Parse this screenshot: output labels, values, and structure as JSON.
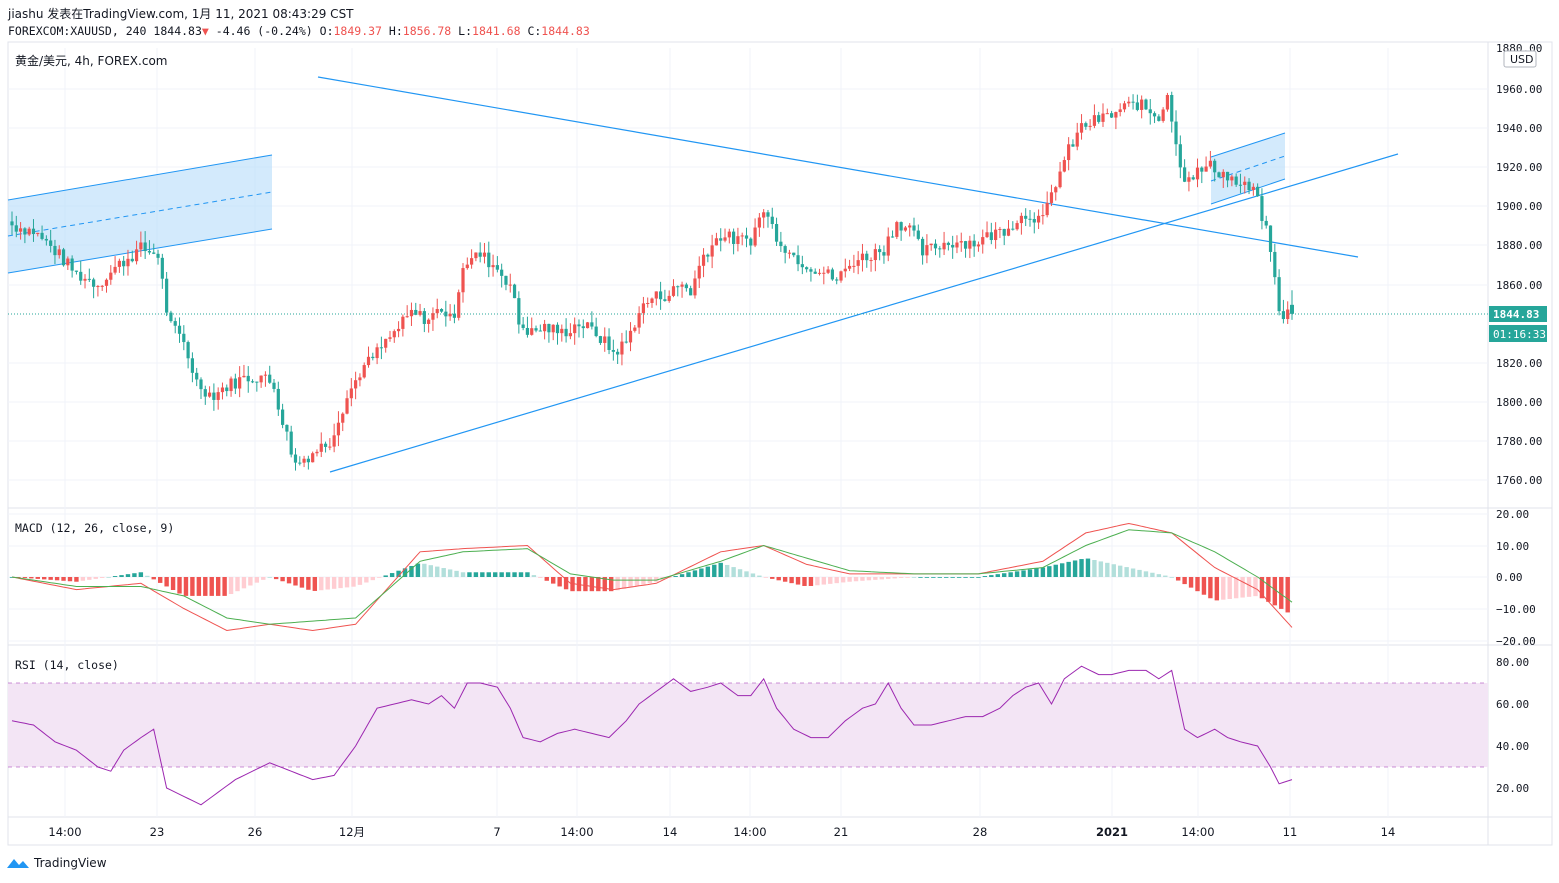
{
  "header": {
    "line1": "jiashu 发表在TradingView.com, 1月 11, 2021 08:43:29 CST",
    "symbol": "FOREXCOM:XAUUSD, 240",
    "last": "1844.83",
    "arrow": "▼",
    "change": "-4.46 (-0.24%)",
    "o_label": "O:",
    "o": "1849.37",
    "h_label": "H:",
    "h": "1856.78",
    "l_label": "L:",
    "l": "1841.68",
    "c_label": "C:",
    "c": "1844.83"
  },
  "main_pane": {
    "legend": "黄金/美元, 4h, FOREX.com",
    "currency": "USD",
    "price_label": "1844.83",
    "countdown": "01:16:33",
    "price_ticks": [
      "1880.00",
      "1960.00",
      "1940.00",
      "1920.00",
      "1900.00",
      "1880.00",
      "1860.00",
      "1820.00",
      "1800.00",
      "1780.00",
      "1760.00"
    ]
  },
  "macd_pane": {
    "legend": "MACD (12, 26, close, 9)",
    "ticks": [
      "20.00",
      "10.00",
      "0.00",
      "−10.00",
      "−20.00"
    ]
  },
  "rsi_pane": {
    "legend": "RSI (14, close)",
    "ticks": [
      "80.00",
      "60.00",
      "40.00",
      "20.00"
    ]
  },
  "time_axis": [
    "14:00",
    "23",
    "26",
    "12月",
    "7",
    "14:00",
    "14",
    "14:00",
    "21",
    "28",
    "2021",
    "14:00",
    "11",
    "14"
  ],
  "footer": {
    "brand": "TradingView"
  },
  "colors": {
    "up": "#26a69a",
    "down": "#ef5350",
    "trendline": "#2196f3",
    "macd": "#ef5350",
    "signal": "#4caf50",
    "rsi": "#9c27b0",
    "rsi_band": "#f3e5f5",
    "channel": "#bbdefb"
  },
  "chart_data": [
    {
      "type": "candlestick",
      "title": "黄金/美元, 4h, FOREX.com",
      "ylim": [
        1745,
        1972
      ],
      "ylabel": "USD",
      "close_path": [
        [
          0,
          1890
        ],
        [
          10,
          1887
        ],
        [
          20,
          1877
        ],
        [
          30,
          1865
        ],
        [
          40,
          1860
        ],
        [
          50,
          1870
        ],
        [
          60,
          1878
        ],
        [
          68,
          1875
        ],
        [
          73,
          1840
        ],
        [
          80,
          1830
        ],
        [
          86,
          1810
        ],
        [
          93,
          1803
        ],
        [
          100,
          1808
        ],
        [
          108,
          1812
        ],
        [
          116,
          1813
        ],
        [
          122,
          1808
        ],
        [
          126,
          1790
        ],
        [
          132,
          1768
        ],
        [
          140,
          1774
        ],
        [
          148,
          1780
        ],
        [
          155,
          1800
        ],
        [
          162,
          1815
        ],
        [
          170,
          1825
        ],
        [
          178,
          1835
        ],
        [
          186,
          1845
        ],
        [
          194,
          1842
        ],
        [
          200,
          1848
        ],
        [
          205,
          1840
        ],
        [
          210,
          1870
        ],
        [
          218,
          1875
        ],
        [
          226,
          1868
        ],
        [
          232,
          1860
        ],
        [
          236,
          1840
        ],
        [
          242,
          1835
        ],
        [
          248,
          1838
        ],
        [
          256,
          1835
        ],
        [
          264,
          1840
        ],
        [
          272,
          1835
        ],
        [
          280,
          1825
        ],
        [
          286,
          1830
        ],
        [
          292,
          1846
        ],
        [
          298,
          1853
        ],
        [
          306,
          1855
        ],
        [
          312,
          1860
        ],
        [
          316,
          1856
        ],
        [
          322,
          1875
        ],
        [
          330,
          1885
        ],
        [
          338,
          1882
        ],
        [
          344,
          1883
        ],
        [
          350,
          1898
        ],
        [
          356,
          1885
        ],
        [
          362,
          1876
        ],
        [
          370,
          1870
        ],
        [
          378,
          1866
        ],
        [
          384,
          1862
        ],
        [
          392,
          1872
        ],
        [
          400,
          1875
        ],
        [
          406,
          1878
        ],
        [
          412,
          1892
        ],
        [
          418,
          1888
        ],
        [
          424,
          1876
        ],
        [
          432,
          1880
        ],
        [
          440,
          1882
        ],
        [
          448,
          1881
        ],
        [
          456,
          1885
        ],
        [
          462,
          1888
        ],
        [
          468,
          1893
        ],
        [
          474,
          1896
        ],
        [
          480,
          1892
        ],
        [
          486,
          1912
        ],
        [
          492,
          1928
        ],
        [
          498,
          1940
        ],
        [
          506,
          1944
        ],
        [
          512,
          1946
        ],
        [
          518,
          1950
        ],
        [
          524,
          1952
        ],
        [
          530,
          1948
        ],
        [
          534,
          1945
        ],
        [
          538,
          1958
        ],
        [
          542,
          1930
        ],
        [
          546,
          1915
        ],
        [
          552,
          1917
        ],
        [
          558,
          1920
        ],
        [
          566,
          1915
        ],
        [
          572,
          1910
        ],
        [
          578,
          1908
        ],
        [
          582,
          1895
        ],
        [
          586,
          1878
        ],
        [
          590,
          1845
        ],
        [
          596,
          1844.83
        ]
      ]
    },
    {
      "type": "line",
      "title": "MACD (12, 26, close, 9)",
      "ylim": [
        -22,
        22
      ],
      "series": [
        {
          "name": "MACD",
          "values": [
            [
              0,
              0
            ],
            [
              30,
              -4
            ],
            [
              60,
              -2
            ],
            [
              80,
              -10
            ],
            [
              100,
              -17
            ],
            [
              120,
              -15
            ],
            [
              140,
              -17
            ],
            [
              160,
              -15
            ],
            [
              190,
              8
            ],
            [
              210,
              9
            ],
            [
              240,
              10
            ],
            [
              260,
              -2
            ],
            [
              280,
              -4
            ],
            [
              300,
              -2
            ],
            [
              330,
              8
            ],
            [
              350,
              10
            ],
            [
              370,
              4
            ],
            [
              390,
              1
            ],
            [
              420,
              1
            ],
            [
              450,
              1
            ],
            [
              480,
              5
            ],
            [
              500,
              14
            ],
            [
              520,
              17
            ],
            [
              540,
              14
            ],
            [
              560,
              3
            ],
            [
              580,
              -4
            ],
            [
              596,
              -16
            ]
          ]
        },
        {
          "name": "Signal",
          "values": [
            [
              0,
              0
            ],
            [
              30,
              -3
            ],
            [
              60,
              -3
            ],
            [
              80,
              -6
            ],
            [
              100,
              -13
            ],
            [
              120,
              -15
            ],
            [
              140,
              -14
            ],
            [
              160,
              -13
            ],
            [
              190,
              5
            ],
            [
              210,
              8
            ],
            [
              240,
              9
            ],
            [
              260,
              1
            ],
            [
              280,
              -1
            ],
            [
              300,
              -1
            ],
            [
              330,
              5
            ],
            [
              350,
              10
            ],
            [
              370,
              6
            ],
            [
              390,
              2
            ],
            [
              420,
              1
            ],
            [
              450,
              1
            ],
            [
              480,
              3
            ],
            [
              500,
              10
            ],
            [
              520,
              15
            ],
            [
              540,
              14
            ],
            [
              560,
              8
            ],
            [
              580,
              0
            ],
            [
              596,
              -8
            ]
          ]
        }
      ]
    },
    {
      "type": "line",
      "title": "RSI (14, close)",
      "ylim": [
        5,
        85
      ],
      "bands": [
        30,
        70
      ],
      "series": [
        {
          "name": "RSI",
          "values": [
            [
              0,
              52
            ],
            [
              10,
              50
            ],
            [
              20,
              42
            ],
            [
              30,
              38
            ],
            [
              40,
              30
            ],
            [
              46,
              28
            ],
            [
              52,
              38
            ],
            [
              60,
              44
            ],
            [
              66,
              48
            ],
            [
              72,
              20
            ],
            [
              80,
              16
            ],
            [
              88,
              12
            ],
            [
              96,
              18
            ],
            [
              104,
              24
            ],
            [
              112,
              28
            ],
            [
              120,
              32
            ],
            [
              130,
              28
            ],
            [
              140,
              24
            ],
            [
              150,
              26
            ],
            [
              160,
              40
            ],
            [
              170,
              58
            ],
            [
              178,
              60
            ],
            [
              186,
              62
            ],
            [
              194,
              60
            ],
            [
              200,
              64
            ],
            [
              206,
              58
            ],
            [
              212,
              70
            ],
            [
              218,
              70
            ],
            [
              226,
              68
            ],
            [
              232,
              58
            ],
            [
              238,
              44
            ],
            [
              246,
              42
            ],
            [
              254,
              46
            ],
            [
              262,
              48
            ],
            [
              270,
              46
            ],
            [
              278,
              44
            ],
            [
              286,
              52
            ],
            [
              292,
              60
            ],
            [
              300,
              66
            ],
            [
              308,
              72
            ],
            [
              316,
              66
            ],
            [
              324,
              68
            ],
            [
              330,
              70
            ],
            [
              338,
              64
            ],
            [
              344,
              64
            ],
            [
              350,
              72
            ],
            [
              356,
              58
            ],
            [
              364,
              48
            ],
            [
              372,
              44
            ],
            [
              380,
              44
            ],
            [
              388,
              52
            ],
            [
              396,
              58
            ],
            [
              402,
              60
            ],
            [
              408,
              70
            ],
            [
              414,
              58
            ],
            [
              420,
              50
            ],
            [
              428,
              50
            ],
            [
              436,
              52
            ],
            [
              444,
              54
            ],
            [
              452,
              54
            ],
            [
              460,
              58
            ],
            [
              466,
              64
            ],
            [
              472,
              68
            ],
            [
              478,
              70
            ],
            [
              484,
              60
            ],
            [
              490,
              72
            ],
            [
              498,
              78
            ],
            [
              506,
              74
            ],
            [
              512,
              74
            ],
            [
              520,
              76
            ],
            [
              528,
              76
            ],
            [
              534,
              72
            ],
            [
              540,
              76
            ],
            [
              546,
              48
            ],
            [
              552,
              44
            ],
            [
              560,
              48
            ],
            [
              566,
              44
            ],
            [
              572,
              42
            ],
            [
              580,
              40
            ],
            [
              586,
              30
            ],
            [
              590,
              22
            ],
            [
              596,
              24
            ]
          ]
        }
      ]
    }
  ]
}
